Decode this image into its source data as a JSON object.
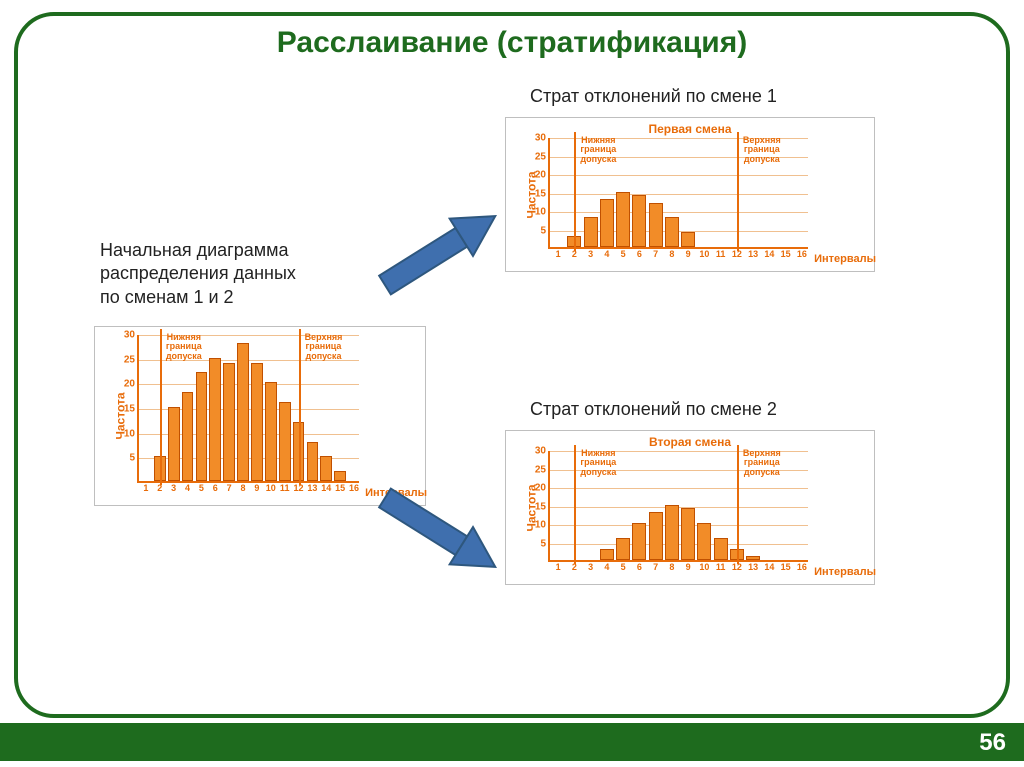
{
  "slide": {
    "title": "Расслаивание (стратификация)",
    "page_number": "56",
    "frame_color": "#1e6b1e",
    "background": "#ffffff"
  },
  "captions": {
    "initial": "Начальная диаграмма\nраспределения данных\nпо сменам 1 и 2",
    "stratum1": "Страт отклонений по смене 1",
    "stratum2": "Страт отклонений по смене 2"
  },
  "chart_common": {
    "type": "histogram",
    "ylabel": "Частота",
    "xlabel": "Интервалы",
    "x_categories": [
      "1",
      "2",
      "3",
      "4",
      "5",
      "6",
      "7",
      "8",
      "9",
      "10",
      "11",
      "12",
      "13",
      "14",
      "15",
      "16"
    ],
    "ylim": [
      0,
      30
    ],
    "yticks": [
      5,
      10,
      15,
      20,
      25,
      30
    ],
    "bar_color": "#f28c28",
    "bar_border": "#c05000",
    "axis_color": "#e86c0a",
    "grid_color": "#f0c090",
    "text_color": "#e86c0a",
    "lower_limit_at_x": 2,
    "upper_limit_at_x": 12,
    "lower_limit_label": "Нижняя\nграница\nдопуска",
    "upper_limit_label": "Верхняя\nграница\nдопуска"
  },
  "charts": {
    "initial": {
      "title": "",
      "values": [
        0,
        5,
        15,
        18,
        22,
        25,
        24,
        28,
        24,
        20,
        16,
        12,
        8,
        5,
        2,
        0
      ]
    },
    "shift1": {
      "title": "Первая смена",
      "values": [
        0,
        3,
        8,
        13,
        15,
        14,
        12,
        8,
        4,
        0,
        0,
        0,
        0,
        0,
        0,
        0
      ]
    },
    "shift2": {
      "title": "Вторая смена",
      "values": [
        0,
        0,
        0,
        3,
        6,
        10,
        13,
        15,
        14,
        10,
        6,
        3,
        1,
        0,
        0,
        0
      ]
    }
  },
  "arrows": {
    "fill": "#3f6fae",
    "stroke": "#2e577e"
  }
}
